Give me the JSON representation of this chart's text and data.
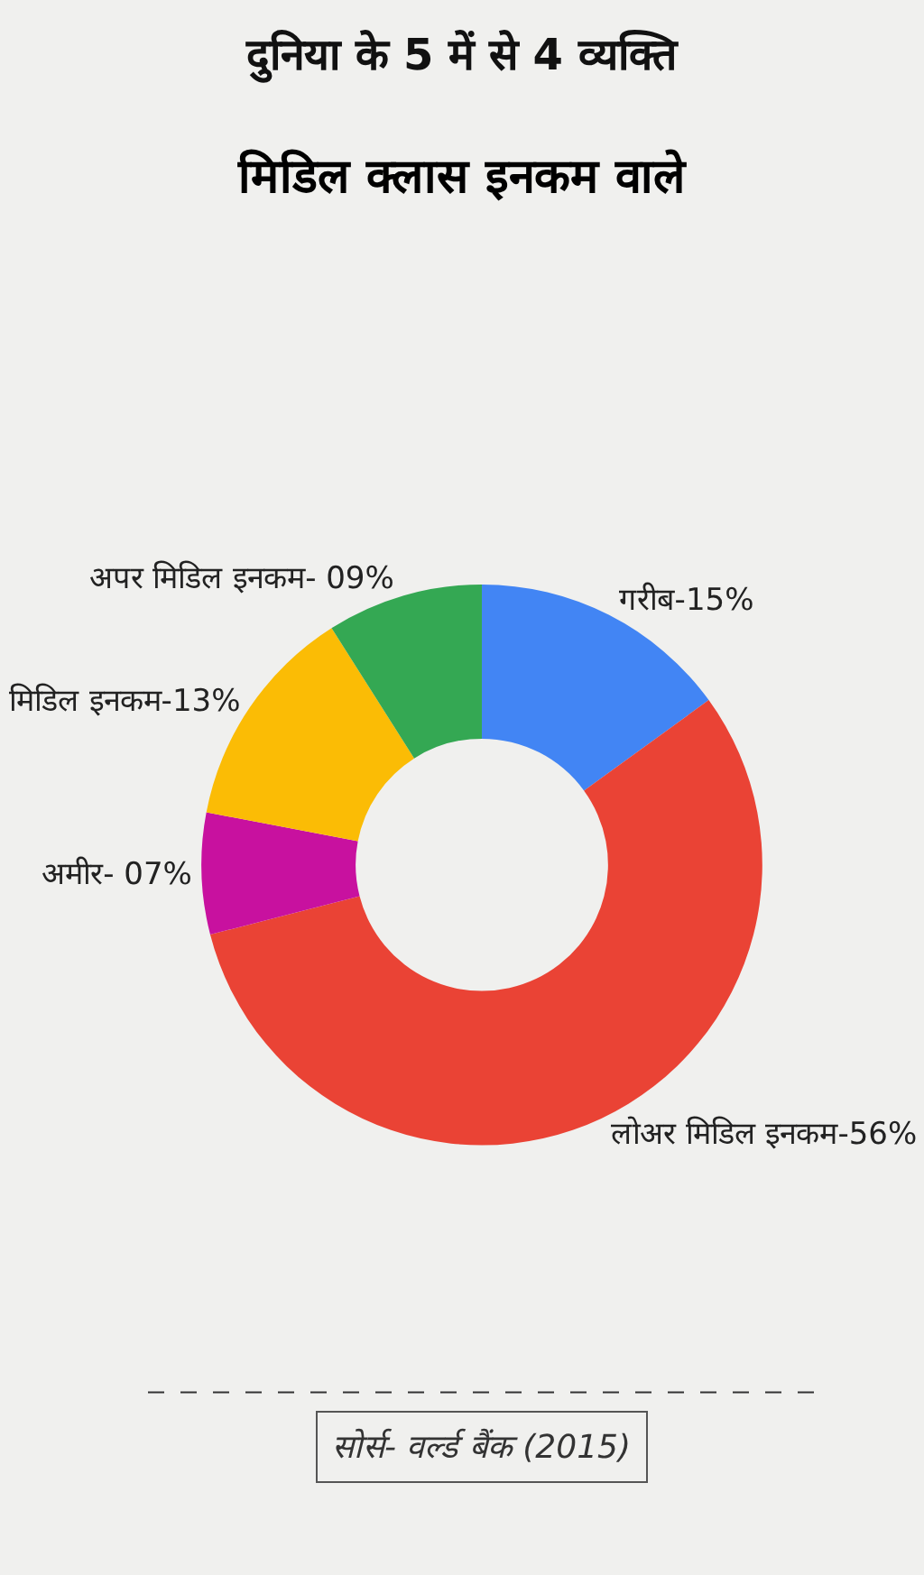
{
  "chart_data": {
    "type": "donut",
    "title": "दुनिया के 5 में से 4 व्यक्ति",
    "subtitle": "मिडिल क्लास इनकम वाले",
    "categories": [
      "गरीब-",
      "लोअर मिडिल इनकम-",
      "अमीर- ",
      "मिडिल इनकम-",
      "अपर मिडिल इनकम- "
    ],
    "values": [
      15,
      56,
      7,
      13,
      9
    ],
    "value_labels": [
      "15%",
      "56%",
      "07%",
      "13%",
      "09%"
    ],
    "colors": [
      "#4285f4",
      "#ea4335",
      "#c8119f",
      "#fbbc05",
      "#34a853"
    ],
    "legend": false,
    "annotations": [
      "सोर्स- वर्ल्ड बैंक (2015)"
    ]
  }
}
